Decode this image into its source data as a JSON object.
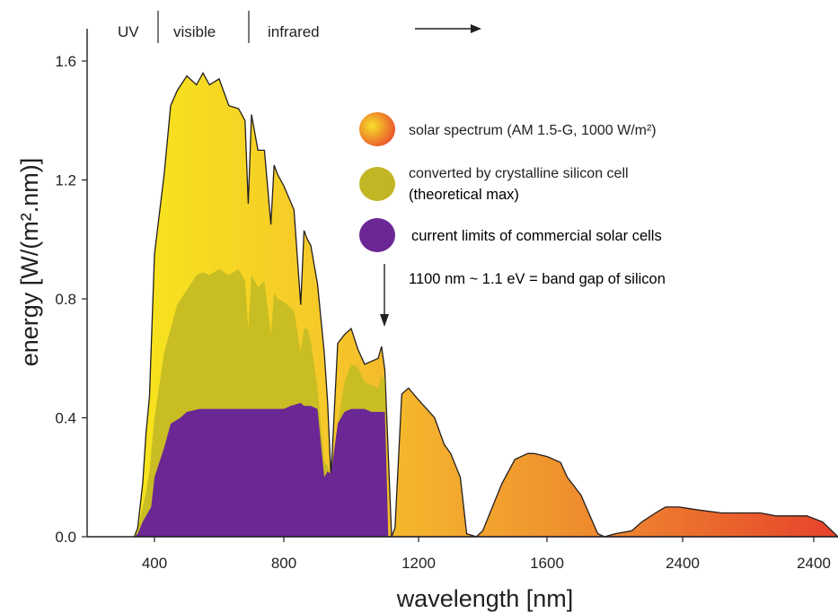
{
  "chart_data": {
    "type": "area",
    "title": "",
    "xlabel": "wavelength [nm]",
    "ylabel": "energy [W/(m².nm)]",
    "ylim": [
      0,
      1.6
    ],
    "y_ticks": [
      "0.0",
      "0.4",
      "0.8",
      "1.2",
      "1.6"
    ],
    "x_ticks": [
      "400",
      "800",
      "1200",
      "1600",
      "2400",
      "2400"
    ],
    "grid": false,
    "legend_position": "top-right",
    "bands": [
      "UV",
      "visible",
      "infrared"
    ],
    "series": [
      {
        "name": "solar spectrum (AM 1.5-G, 1000 W/m²)",
        "color_start": "#f7e71c",
        "color_end": "#e8402a",
        "x": [
          280,
          300,
          330,
          350,
          370,
          400,
          430,
          450,
          470,
          500,
          530,
          550,
          570,
          600,
          630,
          660,
          680,
          690,
          700,
          720,
          740,
          760,
          770,
          780,
          800,
          830,
          850,
          860,
          870,
          880,
          900,
          920,
          930,
          940,
          960,
          980,
          1000,
          1020,
          1040,
          1080,
          1090,
          1100,
          1120,
          1130,
          1150,
          1170,
          1200,
          1250,
          1280,
          1300,
          1330,
          1350,
          1380,
          1400,
          1430,
          1460,
          1500,
          1540,
          1560,
          1600,
          1640,
          1660,
          1700,
          1750,
          1770,
          1800,
          1850,
          1880,
          1920,
          1950,
          1990,
          2040,
          2100,
          2160,
          2200,
          2240,
          2280,
          2320,
          2360,
          2400
        ],
        "y": [
          0.0,
          0.03,
          0.18,
          0.35,
          0.47,
          0.95,
          1.22,
          1.45,
          1.5,
          1.55,
          1.52,
          1.56,
          1.52,
          1.54,
          1.45,
          1.44,
          1.4,
          1.12,
          1.42,
          1.3,
          1.3,
          1.05,
          1.25,
          1.22,
          1.18,
          1.1,
          0.78,
          1.03,
          1.0,
          0.98,
          0.85,
          0.62,
          0.45,
          0.2,
          0.65,
          0.68,
          0.7,
          0.63,
          0.58,
          0.6,
          0.64,
          0.56,
          0.0,
          0.03,
          0.48,
          0.5,
          0.46,
          0.4,
          0.31,
          0.28,
          0.2,
          0.01,
          0.0,
          0.02,
          0.1,
          0.18,
          0.26,
          0.28,
          0.28,
          0.27,
          0.25,
          0.2,
          0.14,
          0.01,
          0.0,
          0.01,
          0.02,
          0.05,
          0.08,
          0.1,
          0.1,
          0.09,
          0.08,
          0.08,
          0.08,
          0.07,
          0.07,
          0.07,
          0.05,
          0.0
        ]
      },
      {
        "name": "converted by crystalline silicon cell (theoretical max)",
        "color": "#c9bd24",
        "x": [
          280,
          300,
          330,
          350,
          370,
          400,
          430,
          450,
          470,
          500,
          530,
          550,
          570,
          600,
          630,
          660,
          680,
          690,
          700,
          720,
          740,
          760,
          770,
          780,
          800,
          830,
          850,
          860,
          870,
          880,
          900,
          920,
          930,
          940,
          960,
          980,
          1000,
          1020,
          1040,
          1080,
          1090,
          1100,
          1110
        ],
        "y": [
          0.0,
          0.02,
          0.1,
          0.15,
          0.22,
          0.4,
          0.62,
          0.7,
          0.78,
          0.83,
          0.88,
          0.89,
          0.88,
          0.9,
          0.88,
          0.9,
          0.86,
          0.7,
          0.88,
          0.84,
          0.86,
          0.68,
          0.82,
          0.8,
          0.79,
          0.76,
          0.62,
          0.7,
          0.7,
          0.66,
          0.5,
          0.25,
          0.24,
          0.19,
          0.38,
          0.52,
          0.58,
          0.57,
          0.52,
          0.5,
          0.54,
          0.53,
          0.0
        ]
      },
      {
        "name": "current limits of commercial solar cells",
        "color": "#6b2794",
        "x": [
          280,
          300,
          330,
          350,
          380,
          400,
          430,
          450,
          480,
          500,
          540,
          580,
          620,
          660,
          700,
          740,
          780,
          800,
          820,
          850,
          860,
          870,
          880,
          900,
          920,
          930,
          940,
          960,
          980,
          1000,
          1020,
          1040,
          1060,
          1080,
          1100,
          1110
        ],
        "y": [
          0.0,
          0.01,
          0.05,
          0.07,
          0.1,
          0.2,
          0.3,
          0.38,
          0.4,
          0.42,
          0.43,
          0.43,
          0.43,
          0.43,
          0.43,
          0.43,
          0.43,
          0.43,
          0.44,
          0.45,
          0.44,
          0.44,
          0.44,
          0.43,
          0.2,
          0.22,
          0.21,
          0.38,
          0.42,
          0.43,
          0.43,
          0.43,
          0.42,
          0.42,
          0.42,
          0.0
        ]
      }
    ],
    "annotations": [
      {
        "text": "1100 nm ~ 1.1 eV =  band gap of silicon",
        "x": 1100
      }
    ]
  }
}
